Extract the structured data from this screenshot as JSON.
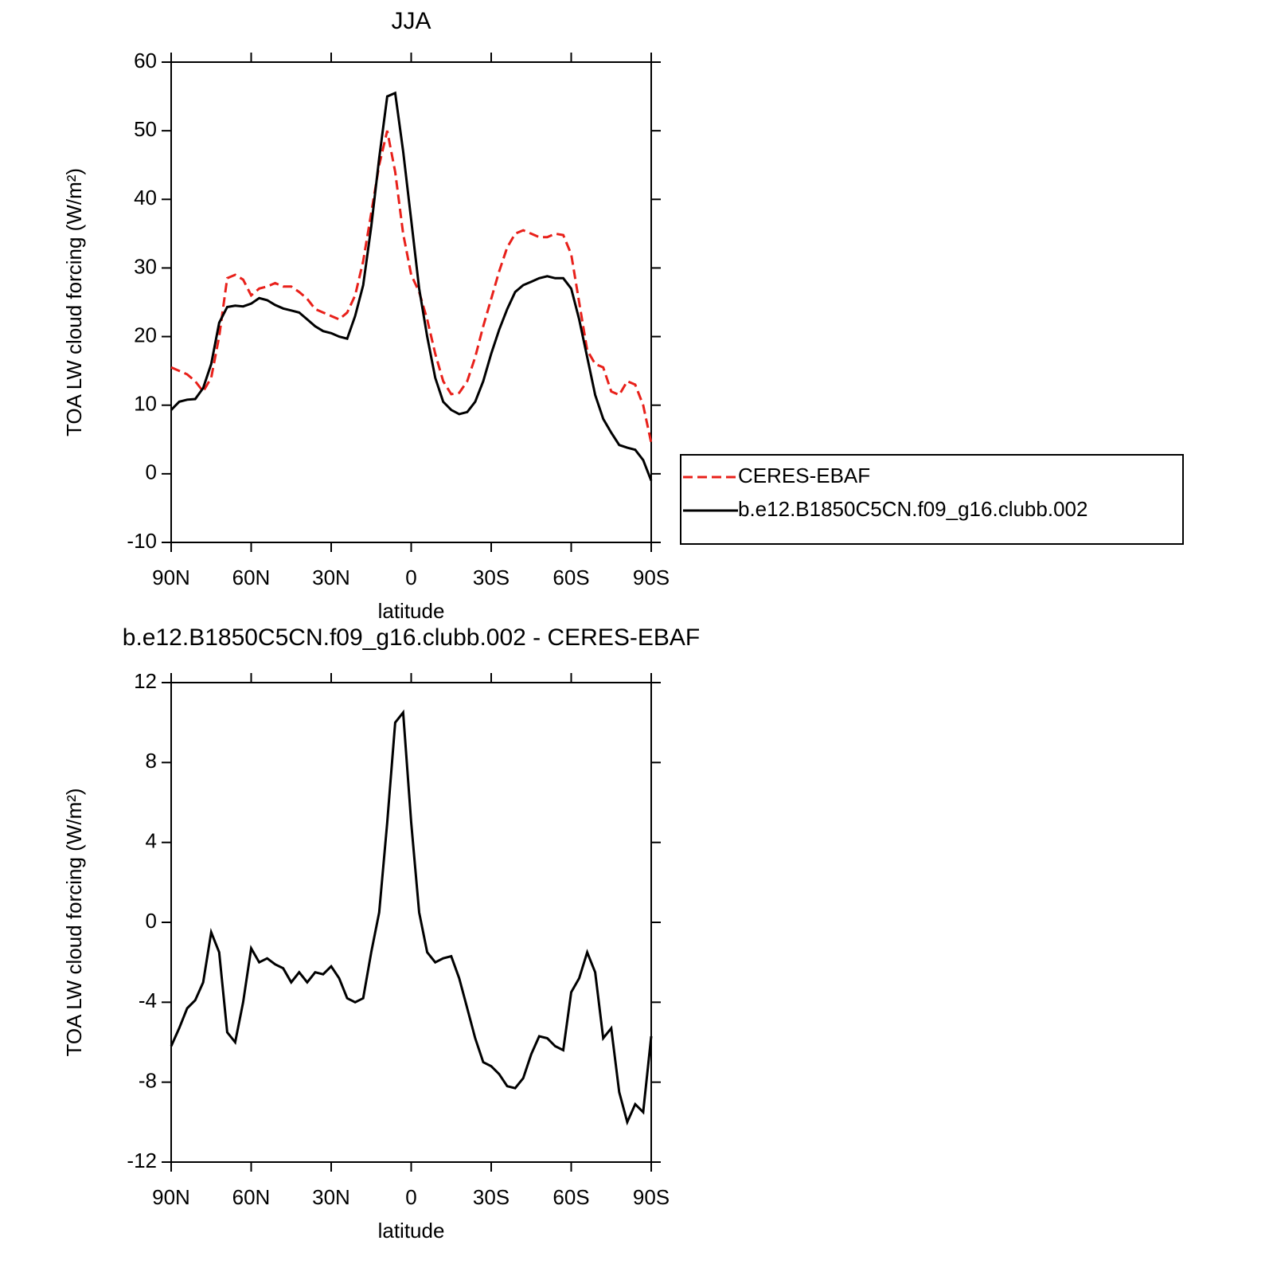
{
  "chart_data": [
    {
      "type": "line",
      "title": "JJA",
      "x_label": "latitude",
      "y_label": "TOA LW cloud forcing (W/m²)",
      "x": [
        90,
        87,
        84,
        81,
        78,
        75,
        72,
        69,
        66,
        63,
        60,
        57,
        54,
        51,
        48,
        45,
        42,
        39,
        36,
        33,
        30,
        27,
        24,
        21,
        18,
        15,
        12,
        9,
        6,
        3,
        0,
        -3,
        -6,
        -9,
        -12,
        -15,
        -18,
        -21,
        -24,
        -27,
        -30,
        -33,
        -36,
        -39,
        -42,
        -45,
        -48,
        -51,
        -54,
        -57,
        -60,
        -63,
        -66,
        -69,
        -72,
        -75,
        -78,
        -81,
        -84,
        -87,
        -90
      ],
      "xlim": [
        90,
        -90
      ],
      "xticks": [
        {
          "value": 90,
          "label": "90N"
        },
        {
          "value": 60,
          "label": "60N"
        },
        {
          "value": 30,
          "label": "30N"
        },
        0,
        {
          "value": -30,
          "label": "30S"
        },
        {
          "value": -60,
          "label": "60S"
        },
        {
          "value": -90,
          "label": "90S"
        }
      ],
      "ylim": [
        -10,
        60
      ],
      "yticks": [
        -10,
        0,
        10,
        20,
        30,
        40,
        50,
        60
      ],
      "legend": "right",
      "series": [
        {
          "name": "CERES-EBAF",
          "color": "#e8201a",
          "line_style": "dashed",
          "values": [
            15.5,
            15,
            14.5,
            13.5,
            12,
            14,
            20,
            28.5,
            29,
            28.3,
            26,
            27,
            27.3,
            27.8,
            27.3,
            27.3,
            26.5,
            25.5,
            24,
            23.5,
            23,
            22.5,
            23.5,
            26,
            31,
            38,
            45,
            50,
            44,
            35,
            29,
            26.5,
            22.5,
            17.5,
            13.5,
            11.6,
            11.8,
            13.5,
            17,
            21.5,
            25.5,
            29.5,
            33,
            35,
            35.5,
            35,
            34.5,
            34.5,
            35,
            34.8,
            32,
            25,
            18,
            16,
            15.5,
            12,
            11.5,
            13.5,
            13,
            10,
            4.5
          ]
        },
        {
          "name": "b.e12.B1850C5CN.f09_g16.clubb.002",
          "color": "#000000",
          "line_style": "solid",
          "values": [
            9.3,
            10.5,
            10.8,
            10.9,
            12.5,
            16,
            22,
            24.3,
            24.5,
            24.4,
            24.8,
            25.6,
            25.3,
            24.6,
            24.1,
            23.8,
            23.5,
            22.5,
            21.5,
            20.8,
            20.5,
            20,
            19.7,
            23,
            27.5,
            36,
            46,
            55,
            55.5,
            47,
            37,
            27,
            20,
            14,
            10.5,
            9.3,
            8.7,
            9,
            10.5,
            13.5,
            17.5,
            21,
            24,
            26.5,
            27.5,
            28,
            28.5,
            28.8,
            28.5,
            28.5,
            27,
            22.5,
            17,
            11.5,
            8,
            6,
            4.2,
            3.8,
            3.5,
            2,
            -1
          ]
        }
      ]
    },
    {
      "type": "line",
      "title": "b.e12.B1850C5CN.f09_g16.clubb.002 - CERES-EBAF",
      "x_label": "latitude",
      "y_label": "TOA LW cloud forcing (W/m²)",
      "x": [
        90,
        87,
        84,
        81,
        78,
        75,
        72,
        69,
        66,
        63,
        60,
        57,
        54,
        51,
        48,
        45,
        42,
        39,
        36,
        33,
        30,
        27,
        24,
        21,
        18,
        15,
        12,
        9,
        6,
        3,
        0,
        -3,
        -6,
        -9,
        -12,
        -15,
        -18,
        -21,
        -24,
        -27,
        -30,
        -33,
        -36,
        -39,
        -42,
        -45,
        -48,
        -51,
        -54,
        -57,
        -60,
        -63,
        -66,
        -69,
        -72,
        -75,
        -78,
        -81,
        -84,
        -87,
        -90
      ],
      "xlim": [
        90,
        -90
      ],
      "xticks": [
        {
          "value": 90,
          "label": "90N"
        },
        {
          "value": 60,
          "label": "60N"
        },
        {
          "value": 30,
          "label": "30N"
        },
        0,
        {
          "value": -30,
          "label": "30S"
        },
        {
          "value": -60,
          "label": "60S"
        },
        {
          "value": -90,
          "label": "90S"
        }
      ],
      "ylim": [
        -12,
        12
      ],
      "yticks": [
        -12,
        -8,
        -4,
        0,
        4,
        8,
        12
      ],
      "color": "#000000",
      "values": [
        -6.2,
        -5.3,
        -4.3,
        -3.9,
        -3,
        -0.5,
        -1.5,
        -5.5,
        -6,
        -4,
        -1.3,
        -2,
        -1.8,
        -2.1,
        -2.3,
        -3,
        -2.5,
        -3,
        -2.5,
        -2.6,
        -2.2,
        -2.8,
        -3.8,
        -4,
        -3.8,
        -1.5,
        0.5,
        5,
        10,
        10.5,
        5,
        0.5,
        -1.5,
        -2,
        -1.8,
        -1.7,
        -2.8,
        -4.3,
        -5.8,
        -7,
        -7.2,
        -7.6,
        -8.2,
        -8.3,
        -7.8,
        -6.6,
        -5.7,
        -5.8,
        -6.2,
        -6.4,
        -3.5,
        -2.8,
        -1.5,
        -2.5,
        -5.8,
        -5.3,
        -8.5,
        -10,
        -9.1,
        -9.5,
        -5.7
      ]
    }
  ]
}
